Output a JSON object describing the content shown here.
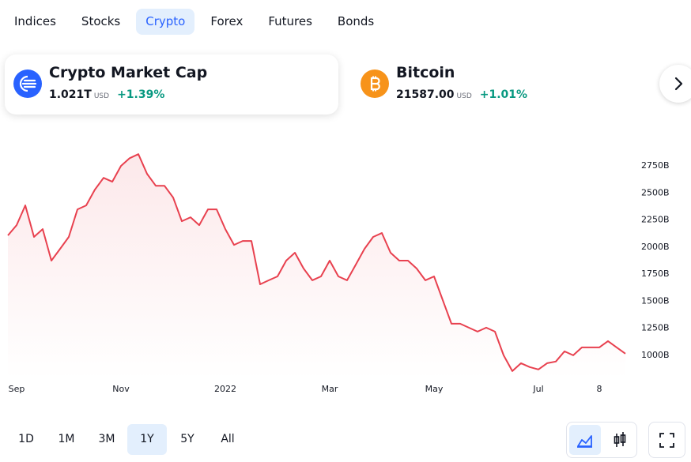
{
  "tabs": [
    "Indices",
    "Stocks",
    "Crypto",
    "Forex",
    "Futures",
    "Bonds"
  ],
  "active_tab": 2,
  "cards": [
    {
      "name": "Crypto Market Cap",
      "value": "1.021T",
      "unit": "USD",
      "change": "+1.39%"
    },
    {
      "name": "Bitcoin",
      "value": "21587.00",
      "unit": "USD",
      "change": "+1.01%"
    }
  ],
  "ranges": [
    "1D",
    "1M",
    "3M",
    "1Y",
    "5Y",
    "All"
  ],
  "active_range": 3,
  "chart_data": {
    "type": "line",
    "color": "#e8414f",
    "categories": [
      null,
      "Sep",
      null,
      null,
      null,
      null,
      null,
      null,
      null,
      null,
      null,
      null,
      null,
      "Nov",
      null,
      null,
      null,
      null,
      null,
      null,
      null,
      null,
      null,
      null,
      null,
      "2022",
      null,
      null,
      null,
      null,
      null,
      null,
      null,
      null,
      null,
      null,
      null,
      "Mar",
      null,
      null,
      null,
      null,
      null,
      null,
      null,
      null,
      null,
      null,
      null,
      "May",
      null,
      null,
      null,
      null,
      null,
      null,
      null,
      null,
      null,
      null,
      null,
      "Jul",
      null,
      null,
      null,
      null,
      null,
      null,
      "8",
      null,
      null,
      null
    ],
    "values": [
      2108,
      2203,
      2385,
      2094,
      2166,
      1875,
      1984,
      2094,
      2349,
      2385,
      2531,
      2640,
      2604,
      2750,
      2822,
      2859,
      2677,
      2567,
      2567,
      2458,
      2239,
      2276,
      2203,
      2349,
      2349,
      2166,
      2020,
      2057,
      2057,
      1656,
      1693,
      1729,
      1875,
      1948,
      1802,
      1693,
      1729,
      1875,
      1729,
      1693,
      1838,
      1984,
      2094,
      2130,
      1948,
      1875,
      1875,
      1802,
      1693,
      1729,
      1510,
      1292,
      1292,
      1255,
      1219,
      1255,
      1219,
      1000,
      854,
      927,
      891,
      869,
      927,
      942,
      1036,
      1000,
      1073,
      1073,
      1073,
      1131,
      1073,
      1015
    ],
    "ylim": [
      780,
      2970
    ],
    "yticks": [
      {
        "value": 1000,
        "label": "1000B"
      },
      {
        "value": 1250,
        "label": "1250B"
      },
      {
        "value": 1500,
        "label": "1500B"
      },
      {
        "value": 1750,
        "label": "1750B"
      },
      {
        "value": 2000,
        "label": "2000B"
      },
      {
        "value": 2250,
        "label": "2250B"
      },
      {
        "value": 2500,
        "label": "2500B"
      },
      {
        "value": 2750,
        "label": "2750B"
      }
    ],
    "area": true
  }
}
